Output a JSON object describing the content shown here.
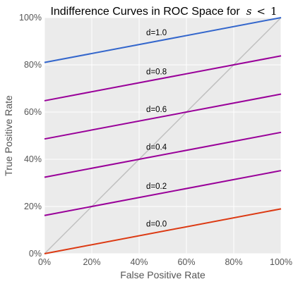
{
  "chart_data": {
    "type": "line",
    "title": {
      "main": "Indifference Curves in ROC Space for",
      "math_var": "s",
      "math_rel": "<",
      "math_num": "1"
    },
    "xlabel": "False Positive Rate",
    "ylabel": "True Positive Rate",
    "xlim": [
      0,
      1
    ],
    "ylim": [
      0,
      1
    ],
    "x_ticks": [
      0,
      0.2,
      0.4,
      0.6,
      0.8,
      1.0
    ],
    "x_tick_labels": [
      "0%",
      "20%",
      "40%",
      "60%",
      "80%",
      "100%"
    ],
    "y_ticks": [
      0,
      0.2,
      0.4,
      0.6,
      0.8,
      1.0
    ],
    "y_tick_labels": [
      "0%",
      "20%",
      "40%",
      "60%",
      "80%",
      "100%"
    ],
    "grid": true,
    "background_color": "#ebebeb",
    "grid_color": "#ffffff",
    "diagonal": {
      "x": [
        0,
        1
      ],
      "y": [
        0,
        1
      ],
      "color": "#bfbfbf"
    },
    "series": [
      {
        "name": "d=1.0",
        "x": [
          0,
          1
        ],
        "y": [
          0.81,
          1.0
        ],
        "color": "#3366cc",
        "label_at": [
          0.43,
          0.925
        ]
      },
      {
        "name": "d=0.8",
        "x": [
          0,
          1
        ],
        "y": [
          0.648,
          0.838
        ],
        "color": "#990099",
        "label_at": [
          0.43,
          0.76
        ]
      },
      {
        "name": "d=0.6",
        "x": [
          0,
          1
        ],
        "y": [
          0.486,
          0.676
        ],
        "color": "#990099",
        "label_at": [
          0.43,
          0.6
        ]
      },
      {
        "name": "d=0.4",
        "x": [
          0,
          1
        ],
        "y": [
          0.324,
          0.514
        ],
        "color": "#990099",
        "label_at": [
          0.43,
          0.44
        ]
      },
      {
        "name": "d=0.2",
        "x": [
          0,
          1
        ],
        "y": [
          0.162,
          0.352
        ],
        "color": "#990099",
        "label_at": [
          0.43,
          0.275
        ]
      },
      {
        "name": "d=0.0",
        "x": [
          0,
          1
        ],
        "y": [
          0.0,
          0.19
        ],
        "color": "#dc3912",
        "label_at": [
          0.43,
          0.115
        ]
      }
    ]
  }
}
